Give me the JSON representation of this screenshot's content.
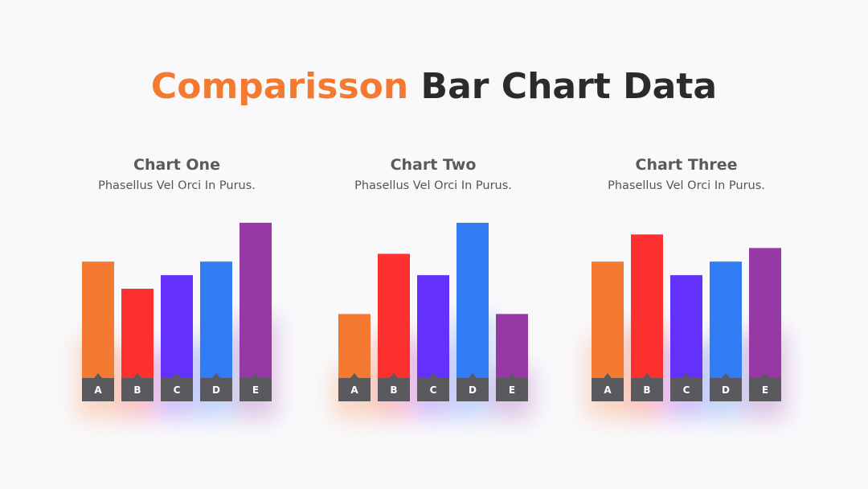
{
  "title": {
    "accent": "Comparisson",
    "rest": "Bar Chart Data"
  },
  "colors": {
    "A": "#f47a32",
    "B": "#fd3030",
    "C": "#6430fc",
    "D": "#317cf4",
    "E": "#9639a4",
    "label_bar": "#5a5a5e",
    "title_accent": "#f47a32"
  },
  "chart_data": [
    {
      "type": "bar",
      "title": "Chart One",
      "subtitle": "Phasellus Vel Orci In Purus.",
      "categories": [
        "A",
        "B",
        "C",
        "D",
        "E"
      ],
      "values": [
        60,
        46,
        53,
        60,
        80
      ]
    },
    {
      "type": "bar",
      "title": "Chart Two",
      "subtitle": "Phasellus Vel Orci In Purus.",
      "categories": [
        "A",
        "B",
        "C",
        "D",
        "E"
      ],
      "values": [
        33,
        64,
        53,
        80,
        33
      ]
    },
    {
      "type": "bar",
      "title": "Chart Three",
      "subtitle": "Phasellus Vel Orci In Purus.",
      "categories": [
        "A",
        "B",
        "C",
        "D",
        "E"
      ],
      "values": [
        60,
        74,
        53,
        60,
        67
      ]
    }
  ]
}
